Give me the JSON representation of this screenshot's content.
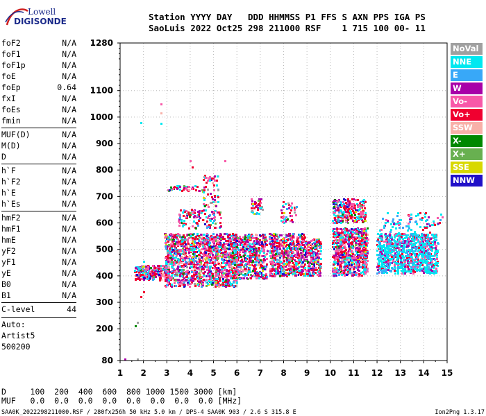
{
  "logo": {
    "line1": "Lowell",
    "line2": "DIGISONDE"
  },
  "header": {
    "labels": [
      "Station",
      "YYYY",
      "DAY",
      "DDD",
      "HHMMSS",
      "P1",
      "FFS",
      "S",
      "AXN",
      "PPS",
      "IGA",
      "PS"
    ],
    "values": [
      "SaoLuis",
      "2022",
      "Oct25",
      "298",
      "211000",
      "RSF",
      "1",
      "715",
      "100",
      "00-",
      "11"
    ]
  },
  "params": [
    {
      "name": "foF2",
      "value": "N/A"
    },
    {
      "name": "foF1",
      "value": "N/A"
    },
    {
      "name": "foF1p",
      "value": "N/A"
    },
    {
      "name": "foE",
      "value": "N/A"
    },
    {
      "name": "foEp",
      "value": "0.64"
    },
    {
      "name": "fxI",
      "value": "N/A"
    },
    {
      "name": "foEs",
      "value": "N/A"
    },
    {
      "name": "fmin",
      "value": "N/A"
    },
    {
      "name": "MUF(D)",
      "value": "N/A"
    },
    {
      "name": "M(D)",
      "value": "N/A"
    },
    {
      "name": "D",
      "value": "N/A"
    },
    {
      "name": "h`F",
      "value": "N/A"
    },
    {
      "name": "h`F2",
      "value": "N/A"
    },
    {
      "name": "h`E",
      "value": "N/A"
    },
    {
      "name": "h`Es",
      "value": "N/A"
    },
    {
      "name": "hmF2",
      "value": "N/A"
    },
    {
      "name": "hmF1",
      "value": "N/A"
    },
    {
      "name": "hmE",
      "value": "N/A"
    },
    {
      "name": "yF2",
      "value": "N/A"
    },
    {
      "name": "yF1",
      "value": "N/A"
    },
    {
      "name": "yE",
      "value": "N/A"
    },
    {
      "name": "B0",
      "value": "N/A"
    },
    {
      "name": "B1",
      "value": "N/A"
    },
    {
      "name": "C-level",
      "value": "44"
    }
  ],
  "scaling": {
    "line1": "Auto:",
    "line2": "Artist5",
    "line3": "500200"
  },
  "legend": [
    {
      "label": "NoVal",
      "color": "#a0a0a0"
    },
    {
      "label": "NNE",
      "color": "#00e8f0"
    },
    {
      "label": "E",
      "color": "#38a8f8"
    },
    {
      "label": "W",
      "color": "#a800a8"
    },
    {
      "label": "Vo-",
      "color": "#f858a8"
    },
    {
      "label": "Vo+",
      "color": "#f00030"
    },
    {
      "label": "SSW",
      "color": "#f8b0a8"
    },
    {
      "label": "X-",
      "color": "#008800"
    },
    {
      "label": "X+",
      "color": "#68b050"
    },
    {
      "label": "SSE",
      "color": "#d8d800"
    },
    {
      "label": "NNW",
      "color": "#2010c8"
    }
  ],
  "bottom": {
    "d_label": "D",
    "d_values": [
      "100",
      "200",
      "400",
      "600",
      "800",
      "1000",
      "1500",
      "3000"
    ],
    "d_unit": "[km]",
    "muf_label": "MUF",
    "muf_values": [
      "0.0",
      "0.0",
      "0.0",
      "0.0",
      "0.0",
      "0.0",
      "0.0",
      "0.0"
    ],
    "muf_unit": "[MHz]"
  },
  "footer": {
    "left": "SAA0K_2022298211000.RSF / 280fx256h 50 kHz 5.0 km / DPS-4 SAA0K 903 / 2.6 S 315.8 E",
    "right": "Ion2Png 1.3.17"
  },
  "chart_data": {
    "type": "scatter",
    "xlim": [
      1,
      15
    ],
    "ylim": [
      80,
      1280
    ],
    "x_ticks": [
      "1",
      "2",
      "3",
      "4",
      "5",
      "6",
      "7",
      "8",
      "9",
      "10",
      "11",
      "12",
      "13",
      "14",
      "15"
    ],
    "y_ticks": [
      "80",
      "200",
      "300",
      "400",
      "500",
      "600",
      "700",
      "800",
      "900",
      "1000",
      "1100",
      "1280"
    ],
    "grid": true,
    "legend_position": "right",
    "clusters": [
      {
        "x": [
          1.6,
          3.1
        ],
        "y": [
          385,
          440
        ],
        "count": 260
      },
      {
        "x": [
          2.9,
          6.0
        ],
        "y": [
          360,
          560
        ],
        "count": 1400
      },
      {
        "x": [
          3.5,
          5.3
        ],
        "y": [
          580,
          650
        ],
        "count": 120
      },
      {
        "x": [
          3.0,
          4.4
        ],
        "y": [
          720,
          740
        ],
        "count": 40
      },
      {
        "x": [
          4.5,
          5.2
        ],
        "y": [
          660,
          780
        ],
        "count": 60
      },
      {
        "x": [
          5.8,
          7.3
        ],
        "y": [
          390,
          560
        ],
        "count": 500
      },
      {
        "x": [
          6.6,
          7.1
        ],
        "y": [
          630,
          690
        ],
        "count": 40
      },
      {
        "x": [
          7.4,
          8.9
        ],
        "y": [
          400,
          560
        ],
        "count": 600
      },
      {
        "x": [
          7.9,
          8.6
        ],
        "y": [
          600,
          680
        ],
        "count": 40
      },
      {
        "x": [
          8.9,
          9.6
        ],
        "y": [
          400,
          540
        ],
        "count": 220
      },
      {
        "x": [
          10.1,
          11.6
        ],
        "y": [
          400,
          580
        ],
        "count": 750
      },
      {
        "x": [
          10.1,
          11.5
        ],
        "y": [
          600,
          690
        ],
        "count": 260
      },
      {
        "x": [
          12.0,
          14.6
        ],
        "y": [
          410,
          560
        ],
        "count": 1000
      },
      {
        "x": [
          12.1,
          14.8
        ],
        "y": [
          560,
          640
        ],
        "count": 90
      }
    ],
    "scattered_points": [
      {
        "x": 1.9,
        "y": 980
      },
      {
        "x": 2.75,
        "y": 1050
      },
      {
        "x": 2.75,
        "y": 1015
      },
      {
        "x": 2.75,
        "y": 975
      },
      {
        "x": 1.75,
        "y": 225
      },
      {
        "x": 1.65,
        "y": 210
      },
      {
        "x": 1.2,
        "y": 85
      },
      {
        "x": 1.75,
        "y": 85
      },
      {
        "x": 1.9,
        "y": 320
      },
      {
        "x": 2.0,
        "y": 340
      },
      {
        "x": 4.0,
        "y": 835
      },
      {
        "x": 4.1,
        "y": 810
      },
      {
        "x": 5.5,
        "y": 835
      },
      {
        "x": 2.0,
        "y": 455
      }
    ]
  }
}
